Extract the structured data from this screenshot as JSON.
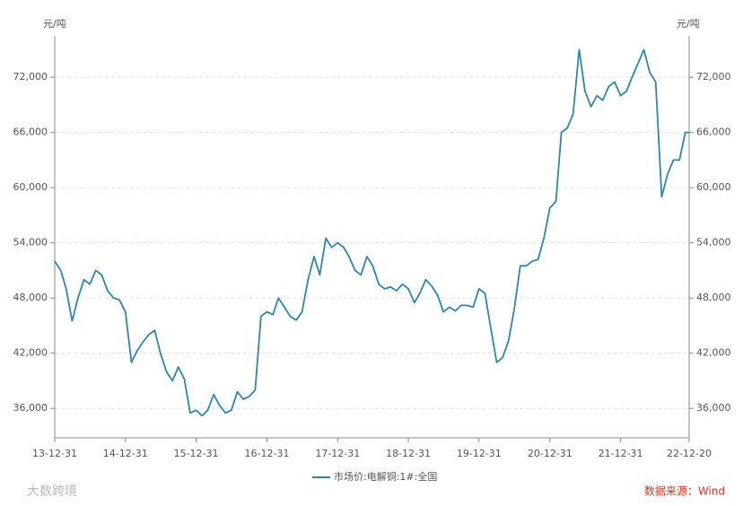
{
  "chart_data": {
    "type": "line",
    "y_label": "元/吨",
    "y2_label": "元/吨",
    "source": "数据来源：Wind",
    "watermark": "大数跨境",
    "grid": true,
    "legend": "bottom",
    "xlim": [
      "13-12-31",
      "22-12-20"
    ],
    "xticks": [
      "13-12-31",
      "14-12-31",
      "15-12-31",
      "16-12-31",
      "17-12-31",
      "18-12-31",
      "19-12-31",
      "20-12-31",
      "21-12-31",
      "22-12-20"
    ],
    "ylim": [
      32800,
      76500
    ],
    "yticks": [
      {
        "value": 36000,
        "label": "36,000"
      },
      {
        "value": 42000,
        "label": "42,000"
      },
      {
        "value": 48000,
        "label": "48,000"
      },
      {
        "value": 54000,
        "label": "54,000"
      },
      {
        "value": 60000,
        "label": "60,000"
      },
      {
        "value": 66000,
        "label": "66,000"
      },
      {
        "value": 72000,
        "label": "72,000"
      }
    ],
    "y2lim": [
      32800,
      76500
    ],
    "y2ticks": [
      {
        "value": 36000,
        "label": "36,000"
      },
      {
        "value": 42000,
        "label": "42,000"
      },
      {
        "value": 48000,
        "label": "48,000"
      },
      {
        "value": 54000,
        "label": "54,000"
      },
      {
        "value": 60000,
        "label": "60,000"
      },
      {
        "value": 66000,
        "label": "66,000"
      },
      {
        "value": 72000,
        "label": "72,000"
      }
    ],
    "x": [
      "13-12-31",
      "14-01-31",
      "14-02-28",
      "14-03-31",
      "14-04-30",
      "14-05-31",
      "14-06-30",
      "14-07-31",
      "14-08-31",
      "14-09-30",
      "14-10-31",
      "14-11-30",
      "14-12-31",
      "15-01-31",
      "15-02-28",
      "15-03-31",
      "15-04-30",
      "15-05-31",
      "15-06-30",
      "15-07-31",
      "15-08-31",
      "15-09-30",
      "15-10-31",
      "15-11-30",
      "15-12-31",
      "16-01-31",
      "16-02-29",
      "16-03-31",
      "16-04-30",
      "16-05-31",
      "16-06-30",
      "16-07-31",
      "16-08-31",
      "16-09-30",
      "16-10-31",
      "16-11-30",
      "16-12-31",
      "17-01-31",
      "17-02-28",
      "17-03-31",
      "17-04-30",
      "17-05-31",
      "17-06-30",
      "17-07-31",
      "17-08-31",
      "17-09-30",
      "17-10-31",
      "17-11-30",
      "17-12-31",
      "18-01-31",
      "18-02-28",
      "18-03-31",
      "18-04-30",
      "18-05-31",
      "18-06-30",
      "18-07-31",
      "18-08-31",
      "18-09-30",
      "18-10-31",
      "18-11-30",
      "18-12-31",
      "19-01-31",
      "19-02-28",
      "19-03-31",
      "19-04-30",
      "19-05-31",
      "19-06-30",
      "19-07-31",
      "19-08-31",
      "19-09-30",
      "19-10-31",
      "19-11-30",
      "19-12-31",
      "20-01-31",
      "20-02-29",
      "20-03-31",
      "20-04-30",
      "20-05-31",
      "20-06-30",
      "20-07-31",
      "20-08-31",
      "20-09-30",
      "20-10-31",
      "20-11-30",
      "20-12-31",
      "21-01-31",
      "21-02-28",
      "21-03-31",
      "21-04-30",
      "21-05-31",
      "21-06-30",
      "21-07-31",
      "21-08-31",
      "21-09-30",
      "21-10-31",
      "21-11-30",
      "21-12-31",
      "22-01-31",
      "22-02-28",
      "22-03-31",
      "22-04-30",
      "22-05-31",
      "22-06-30",
      "22-07-31",
      "22-08-31",
      "22-09-30",
      "22-10-31",
      "22-11-30",
      "22-12-20"
    ],
    "series": [
      {
        "name": "市场价:电解铜:1#:全国",
        "color": "#2e86ab",
        "values": [
          52000,
          51000,
          49000,
          45500,
          48000,
          50000,
          49500,
          51000,
          50500,
          48800,
          48000,
          47800,
          46500,
          41000,
          42200,
          43200,
          44000,
          44500,
          42000,
          40000,
          39000,
          40500,
          39200,
          35500,
          35800,
          35200,
          35800,
          37500,
          36300,
          35500,
          35800,
          37800,
          37000,
          37300,
          38000,
          46000,
          46500,
          46200,
          48000,
          47000,
          46000,
          45600,
          46500,
          50000,
          52500,
          50500,
          54500,
          53500,
          54000,
          53500,
          52500,
          51000,
          50500,
          52500,
          51500,
          49500,
          49000,
          49200,
          48800,
          49500,
          49000,
          47500,
          48500,
          50000,
          49300,
          48300,
          46500,
          47000,
          46600,
          47200,
          47200,
          47000,
          49000,
          48500,
          44800,
          41000,
          41500,
          43300,
          46800,
          51500,
          51500,
          52000,
          52200,
          54500,
          57800,
          58500,
          66000,
          66500,
          68000,
          75000,
          70500,
          68800,
          70000,
          69500,
          71000,
          71500,
          70000,
          70500,
          72000,
          73500,
          75000,
          72500,
          71500,
          59000,
          61500,
          63000,
          63000,
          66000,
          66000
        ]
      }
    ]
  }
}
